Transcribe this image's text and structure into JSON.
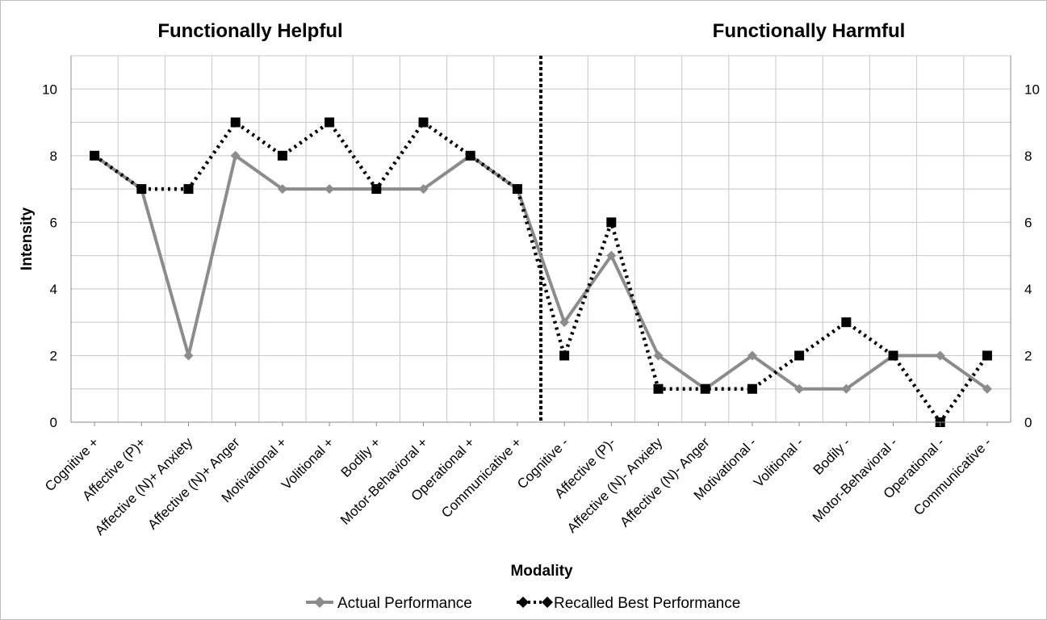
{
  "chart_data": {
    "type": "line",
    "annotations": [
      "Functionally Helpful",
      "Functionally Harmful"
    ],
    "xlabel": "Modality",
    "ylabel": "Intensity",
    "ylim": [
      0,
      11
    ],
    "y_ticks": [
      0,
      2,
      4,
      6,
      8,
      10
    ],
    "grid": true,
    "legend_position": "bottom",
    "categories": [
      "Cognitive +",
      "Affective (P)+",
      "Affective (N)+ Anxiety",
      "Affective (N)+ Anger",
      "Motivational +",
      "Volitional +",
      "Bodily +",
      "Motor-Behavioral +",
      "Operational +",
      "Communicative +",
      "Cognitive -",
      "Affective (P)-",
      "Affective (N)- Anxiety",
      "Affective (N)- Anger",
      "Motivational -",
      "Volitional -",
      "Bodily -",
      "Motor-Behavioral -",
      "Operational -",
      "Communicative -"
    ],
    "divider_after_index": 9,
    "series": [
      {
        "name": "Actual Performance",
        "color": "#8c8c8c",
        "line_style": "solid",
        "marker": "diamond",
        "values": [
          8,
          7,
          2,
          8,
          7,
          7,
          7,
          7,
          8,
          7,
          3,
          5,
          2,
          1,
          2,
          1,
          1,
          2,
          2,
          1
        ]
      },
      {
        "name": "Recalled Best Performance",
        "color": "#000000",
        "line_style": "dotted",
        "marker": "square",
        "values": [
          8,
          7,
          7,
          9,
          8,
          9,
          7,
          9,
          8,
          7,
          2,
          6,
          1,
          1,
          1,
          2,
          3,
          2,
          0,
          2
        ]
      }
    ]
  }
}
